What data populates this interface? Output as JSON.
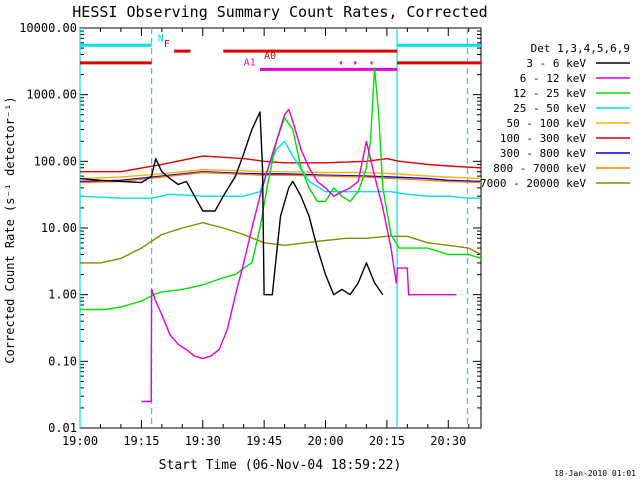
{
  "chart_data": {
    "type": "line",
    "title": "HESSI Observing Summary Count Rates, Corrected",
    "xlabel": "Start Time (06-Nov-04 18:59:22)",
    "ylabel": "Corrected Count Rate (s⁻¹ detector⁻¹)",
    "footer": "18-Jan-2010 01:01",
    "yscale": "log",
    "xlim": [
      0,
      98
    ],
    "ylim": [
      0.01,
      10000
    ],
    "x_unit": "minutes since 19:00",
    "x_ticks": [
      {
        "value": 0,
        "label": "19:00"
      },
      {
        "value": 15,
        "label": "19:15"
      },
      {
        "value": 30,
        "label": "19:30"
      },
      {
        "value": 45,
        "label": "19:45"
      },
      {
        "value": 60,
        "label": "20:00"
      },
      {
        "value": 75,
        "label": "20:15"
      },
      {
        "value": 90,
        "label": "20:30"
      }
    ],
    "y_ticks": [
      {
        "value": 0.01,
        "label": "0.01"
      },
      {
        "value": 0.1,
        "label": "0.10"
      },
      {
        "value": 1,
        "label": "1.00"
      },
      {
        "value": 10,
        "label": "10.00"
      },
      {
        "value": 100,
        "label": "100.00"
      },
      {
        "value": 1000,
        "label": "1000.00"
      },
      {
        "value": 10000,
        "label": "10000.00"
      }
    ],
    "legend_title": "Det 1,3,4,5,6,9",
    "legend_position": "right",
    "vlines": [
      {
        "x": 0,
        "color": "#00e0e0"
      },
      {
        "x": 17.5,
        "color": "#00e0e0",
        "dashed": true
      },
      {
        "x": 77.5,
        "color": "#00e0e0"
      },
      {
        "x": 94.7,
        "color": "#00e0e0",
        "dashed": true
      }
    ],
    "flags": [
      {
        "label": "N",
        "color": "#00e0e0",
        "value": 5500,
        "label_x": 19,
        "segments": [
          [
            0,
            17.5
          ],
          [
            77.5,
            98
          ]
        ]
      },
      {
        "label": "F",
        "color": "#e00000",
        "value": 4500,
        "label_x": 20.5,
        "segments": [
          [
            23,
            27
          ],
          [
            35,
            77.5
          ]
        ]
      },
      {
        "label": "A0",
        "color": "#e00000",
        "value": 3000,
        "label_x": 45,
        "segments": [
          [
            0,
            17.5
          ],
          [
            77.5,
            98
          ]
        ]
      },
      {
        "label": "A1",
        "color": "#e000e0",
        "value": 2400,
        "label_x": 40,
        "segments": [
          [
            44,
            77.5
          ]
        ]
      },
      {
        "label": "",
        "color": "#e000e0",
        "value": 3000,
        "label_x": null,
        "segments": [
          [
            63.5,
            64
          ],
          [
            67,
            67.5
          ],
          [
            71,
            71.5
          ]
        ]
      }
    ],
    "series": [
      {
        "name": "3 - 6 keV",
        "color": "#000000",
        "points": [
          [
            0,
            55
          ],
          [
            5,
            52
          ],
          [
            10,
            50
          ],
          [
            15,
            48
          ],
          [
            17.5,
            60
          ],
          [
            18.5,
            110
          ],
          [
            20,
            70
          ],
          [
            22,
            55
          ],
          [
            24,
            45
          ],
          [
            26,
            50
          ],
          [
            28,
            30
          ],
          [
            30,
            18
          ],
          [
            33,
            18
          ],
          [
            35,
            30
          ],
          [
            38,
            60
          ],
          [
            40,
            130
          ],
          [
            42,
            300
          ],
          [
            44,
            550
          ],
          [
            44.6,
            80
          ],
          [
            45,
            1
          ],
          [
            47,
            1
          ],
          [
            49,
            15
          ],
          [
            51,
            40
          ],
          [
            52,
            50
          ],
          [
            54,
            30
          ],
          [
            56,
            15
          ],
          [
            58,
            5
          ],
          [
            60,
            2
          ],
          [
            62,
            1
          ],
          [
            64,
            1.2
          ],
          [
            66,
            1
          ],
          [
            68,
            1.5
          ],
          [
            70,
            3
          ],
          [
            72,
            1.5
          ],
          [
            74,
            1
          ]
        ]
      },
      {
        "name": "6 - 12 keV",
        "color": "#e000e0",
        "points": [
          [
            15,
            0.025
          ],
          [
            17.4,
            0.025
          ],
          [
            17.5,
            1.2
          ],
          [
            18.5,
            0.8
          ],
          [
            20,
            0.5
          ],
          [
            22,
            0.25
          ],
          [
            24,
            0.18
          ],
          [
            26,
            0.15
          ],
          [
            28,
            0.12
          ],
          [
            30,
            0.11
          ],
          [
            32,
            0.12
          ],
          [
            34,
            0.15
          ],
          [
            36,
            0.3
          ],
          [
            38,
            1
          ],
          [
            40,
            3
          ],
          [
            42,
            10
          ],
          [
            44,
            30
          ],
          [
            46,
            80
          ],
          [
            48,
            200
          ],
          [
            50,
            500
          ],
          [
            51,
            600
          ],
          [
            52,
            400
          ],
          [
            54,
            150
          ],
          [
            56,
            80
          ],
          [
            58,
            50
          ],
          [
            60,
            40
          ],
          [
            62,
            30
          ],
          [
            64,
            35
          ],
          [
            66,
            40
          ],
          [
            68,
            50
          ],
          [
            70,
            200
          ],
          [
            72,
            60
          ],
          [
            74,
            20
          ],
          [
            76,
            5
          ],
          [
            77.3,
            1.5
          ],
          [
            77.6,
            2.5
          ],
          [
            80,
            2.5
          ],
          [
            80.3,
            1
          ],
          [
            92,
            1
          ]
        ]
      },
      {
        "name": "12 - 25 keV",
        "color": "#00e000",
        "points": [
          [
            0,
            0.6
          ],
          [
            6,
            0.6
          ],
          [
            10,
            0.65
          ],
          [
            15,
            0.8
          ],
          [
            18,
            1
          ],
          [
            20,
            1.1
          ],
          [
            25,
            1.2
          ],
          [
            30,
            1.4
          ],
          [
            35,
            1.8
          ],
          [
            38,
            2
          ],
          [
            40,
            2.5
          ],
          [
            42,
            3
          ],
          [
            44,
            10
          ],
          [
            46,
            50
          ],
          [
            48,
            200
          ],
          [
            50,
            450
          ],
          [
            52,
            300
          ],
          [
            54,
            80
          ],
          [
            56,
            40
          ],
          [
            58,
            25
          ],
          [
            60,
            25
          ],
          [
            62,
            40
          ],
          [
            64,
            30
          ],
          [
            66,
            25
          ],
          [
            68,
            35
          ],
          [
            70,
            80
          ],
          [
            71,
            200
          ],
          [
            72,
            2500
          ],
          [
            73,
            500
          ],
          [
            74,
            40
          ],
          [
            76,
            8
          ],
          [
            78,
            5
          ],
          [
            85,
            5
          ],
          [
            90,
            4
          ],
          [
            95,
            4
          ],
          [
            98,
            3.5
          ]
        ]
      },
      {
        "name": "25 - 50 keV",
        "color": "#00e0e0",
        "points": [
          [
            0,
            30
          ],
          [
            10,
            28
          ],
          [
            17.5,
            28
          ],
          [
            22,
            32
          ],
          [
            30,
            30
          ],
          [
            40,
            30
          ],
          [
            44,
            35
          ],
          [
            46,
            80
          ],
          [
            48,
            150
          ],
          [
            50,
            200
          ],
          [
            52,
            120
          ],
          [
            56,
            50
          ],
          [
            60,
            35
          ],
          [
            64,
            35
          ],
          [
            68,
            35
          ],
          [
            72,
            35
          ],
          [
            76,
            35
          ],
          [
            80,
            32
          ],
          [
            85,
            30
          ],
          [
            90,
            30
          ],
          [
            95,
            28
          ],
          [
            98,
            28
          ]
        ]
      },
      {
        "name": "50 - 100 keV",
        "color": "#ffb000",
        "points": [
          [
            0,
            55
          ],
          [
            10,
            58
          ],
          [
            20,
            65
          ],
          [
            30,
            75
          ],
          [
            40,
            72
          ],
          [
            45,
            70
          ],
          [
            50,
            70
          ],
          [
            60,
            68
          ],
          [
            70,
            68
          ],
          [
            77,
            65
          ],
          [
            85,
            60
          ],
          [
            90,
            58
          ],
          [
            98,
            55
          ]
        ]
      },
      {
        "name": "100 - 300 keV",
        "color": "#e00000",
        "points": [
          [
            0,
            70
          ],
          [
            10,
            70
          ],
          [
            20,
            90
          ],
          [
            30,
            120
          ],
          [
            40,
            110
          ],
          [
            45,
            100
          ],
          [
            50,
            95
          ],
          [
            60,
            95
          ],
          [
            70,
            100
          ],
          [
            75,
            110
          ],
          [
            78,
            100
          ],
          [
            85,
            90
          ],
          [
            90,
            85
          ],
          [
            98,
            80
          ]
        ]
      },
      {
        "name": "300 - 800 keV",
        "color": "#0000e0",
        "points": [
          [
            0,
            50
          ],
          [
            10,
            52
          ],
          [
            20,
            60
          ],
          [
            30,
            70
          ],
          [
            40,
            66
          ],
          [
            45,
            65
          ],
          [
            50,
            65
          ],
          [
            60,
            62
          ],
          [
            70,
            60
          ],
          [
            77,
            58
          ],
          [
            85,
            55
          ],
          [
            90,
            52
          ],
          [
            98,
            50
          ]
        ]
      },
      {
        "name": "800 - 7000 keV",
        "color": "#ff8000",
        "points": [
          [
            0,
            48
          ],
          [
            10,
            50
          ],
          [
            20,
            58
          ],
          [
            30,
            68
          ],
          [
            40,
            64
          ],
          [
            45,
            62
          ],
          [
            50,
            62
          ],
          [
            60,
            60
          ],
          [
            70,
            58
          ],
          [
            77,
            55
          ],
          [
            85,
            52
          ],
          [
            90,
            50
          ],
          [
            98,
            48
          ]
        ]
      },
      {
        "name": "7000 - 20000 keV",
        "color": "#888800",
        "points": [
          [
            0,
            3
          ],
          [
            5,
            3
          ],
          [
            10,
            3.5
          ],
          [
            15,
            5
          ],
          [
            20,
            8
          ],
          [
            25,
            10
          ],
          [
            30,
            12
          ],
          [
            35,
            10
          ],
          [
            40,
            8
          ],
          [
            45,
            6
          ],
          [
            50,
            5.5
          ],
          [
            55,
            6
          ],
          [
            60,
            6.5
          ],
          [
            65,
            7
          ],
          [
            70,
            7
          ],
          [
            75,
            7.5
          ],
          [
            80,
            7.5
          ],
          [
            85,
            6
          ],
          [
            90,
            5.5
          ],
          [
            95,
            5
          ],
          [
            98,
            4
          ]
        ]
      }
    ]
  }
}
